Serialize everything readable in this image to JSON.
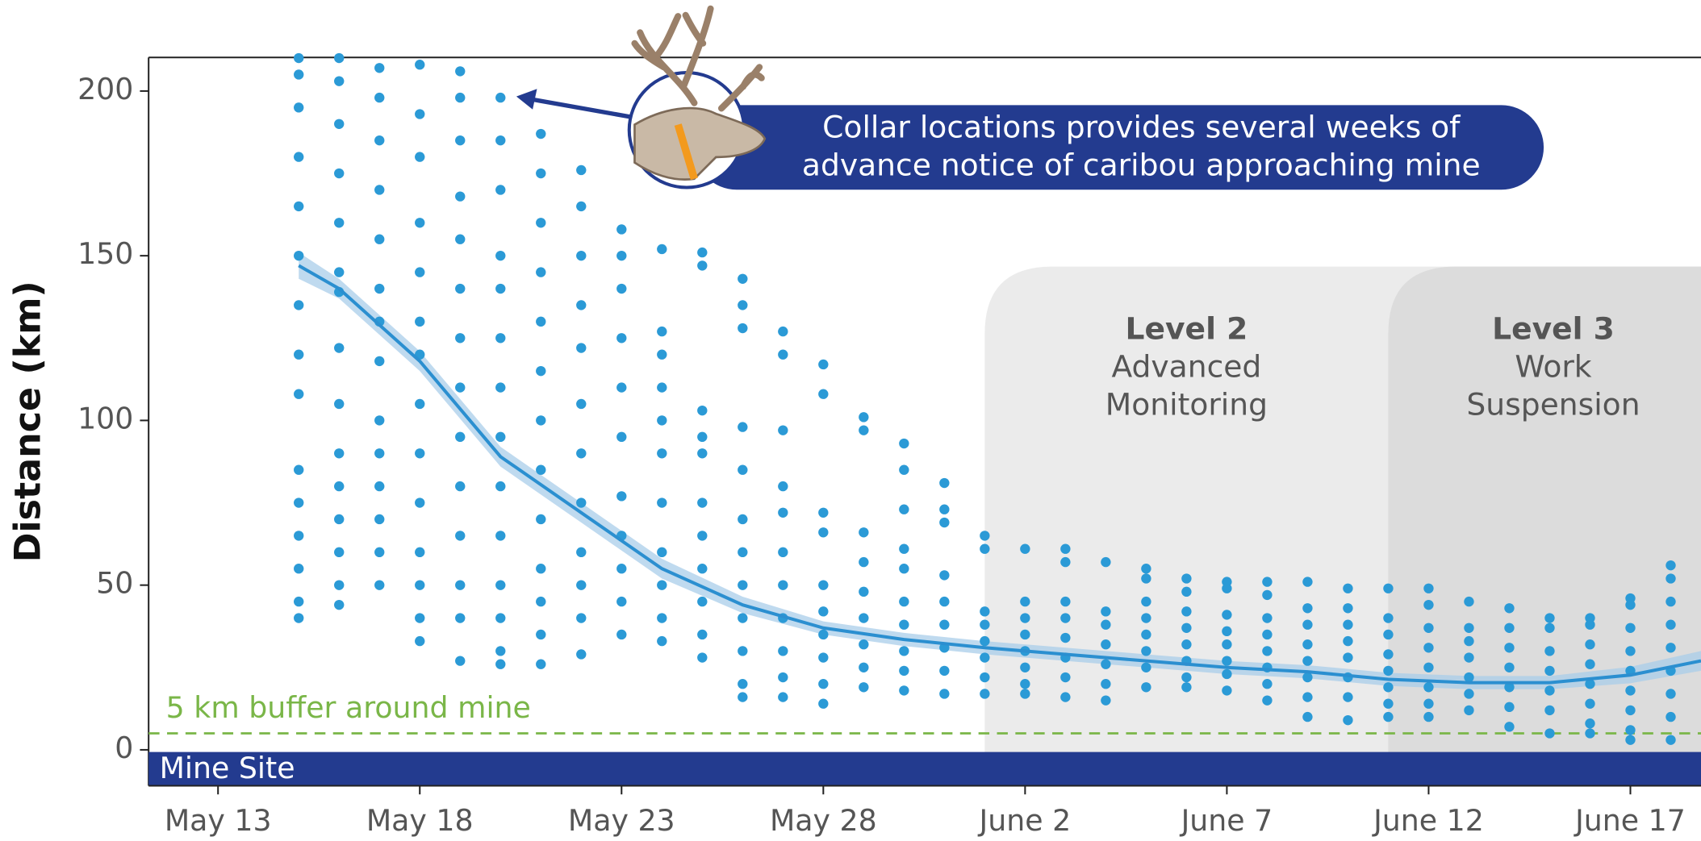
{
  "chart_data": {
    "type": "scatter",
    "y_label": "Distance (km)",
    "color": "#2b9ad6",
    "xlim": [
      -1.72,
      36.75
    ],
    "xticks": [
      {
        "value": 0,
        "label": "May 13"
      },
      {
        "value": 5,
        "label": "May 18"
      },
      {
        "value": 10,
        "label": "May 23"
      },
      {
        "value": 15,
        "label": "May 28"
      },
      {
        "value": 20,
        "label": "June 2"
      },
      {
        "value": 25,
        "label": "June 7"
      },
      {
        "value": 30,
        "label": "June 12"
      },
      {
        "value": 35,
        "label": "June 17"
      }
    ],
    "ylim": [
      -10.9,
      210.2
    ],
    "yticks": [
      0,
      50,
      100,
      150,
      200
    ],
    "x": [
      2,
      3,
      4,
      5,
      6,
      7,
      8,
      9,
      10,
      11,
      12,
      13,
      14,
      15,
      16,
      17,
      18,
      19,
      20,
      21,
      22,
      23,
      24,
      25,
      26,
      27,
      28,
      29,
      30,
      31,
      32,
      33,
      34,
      35,
      36
    ],
    "values": [
      [
        210,
        205,
        195,
        180,
        165,
        150,
        135,
        120,
        108,
        85,
        75,
        65,
        55,
        45,
        40
      ],
      [
        210,
        203,
        190,
        175,
        160,
        145,
        139,
        122,
        105,
        90,
        80,
        70,
        60,
        50,
        44
      ],
      [
        207,
        198,
        185,
        170,
        155,
        140,
        130,
        118,
        100,
        90,
        80,
        70,
        60,
        50
      ],
      [
        208,
        193,
        180,
        160,
        145,
        130,
        120,
        105,
        90,
        75,
        60,
        50,
        40,
        33
      ],
      [
        206,
        198,
        185,
        168,
        155,
        140,
        125,
        110,
        95,
        80,
        65,
        50,
        40,
        27
      ],
      [
        198,
        185,
        170,
        150,
        140,
        125,
        110,
        95,
        80,
        65,
        50,
        40,
        30,
        26
      ],
      [
        187,
        175,
        160,
        145,
        130,
        115,
        100,
        85,
        70,
        55,
        45,
        35,
        26
      ],
      [
        176,
        165,
        150,
        135,
        122,
        105,
        90,
        75,
        60,
        50,
        40,
        29
      ],
      [
        158,
        150,
        140,
        125,
        110,
        95,
        77,
        65,
        55,
        45,
        35
      ],
      [
        152,
        127,
        120,
        110,
        100,
        90,
        75,
        60,
        50,
        40,
        33
      ],
      [
        151,
        147,
        103,
        95,
        90,
        75,
        65,
        55,
        45,
        35,
        28
      ],
      [
        143,
        135,
        128,
        98,
        85,
        70,
        60,
        50,
        40,
        30,
        20,
        16
      ],
      [
        127,
        120,
        97,
        80,
        72,
        60,
        50,
        40,
        30,
        22,
        16
      ],
      [
        117,
        108,
        72,
        66,
        50,
        42,
        35,
        28,
        20,
        14
      ],
      [
        101,
        97,
        66,
        57,
        48,
        40,
        32,
        25,
        19
      ],
      [
        93,
        85,
        73,
        61,
        55,
        45,
        38,
        30,
        24,
        18
      ],
      [
        81,
        73,
        69,
        53,
        45,
        38,
        31,
        24,
        17
      ],
      [
        65,
        61,
        42,
        38,
        33,
        28,
        22,
        17
      ],
      [
        61,
        45,
        40,
        35,
        30,
        25,
        20,
        17
      ],
      [
        61,
        57,
        45,
        40,
        34,
        28,
        22,
        16
      ],
      [
        57,
        42,
        38,
        32,
        26,
        20,
        15
      ],
      [
        55,
        52,
        45,
        40,
        35,
        30,
        25,
        19
      ],
      [
        52,
        48,
        42,
        37,
        32,
        27,
        22,
        19
      ],
      [
        51,
        49,
        41,
        36,
        32,
        27,
        23,
        18
      ],
      [
        51,
        47,
        40,
        35,
        30,
        25,
        20,
        15
      ],
      [
        51,
        43,
        38,
        32,
        27,
        22,
        16,
        10
      ],
      [
        49,
        43,
        38,
        33,
        28,
        22,
        16,
        9
      ],
      [
        49,
        40,
        35,
        29,
        24,
        19,
        14,
        10
      ],
      [
        49,
        44,
        37,
        31,
        25,
        19,
        14,
        10
      ],
      [
        45,
        37,
        33,
        28,
        22,
        17,
        12
      ],
      [
        43,
        37,
        31,
        25,
        19,
        13,
        7
      ],
      [
        40,
        37,
        30,
        24,
        18,
        12,
        5
      ],
      [
        40,
        38,
        32,
        26,
        20,
        14,
        8,
        5
      ],
      [
        46,
        44,
        37,
        30,
        24,
        18,
        12,
        6,
        3
      ],
      [
        56,
        52,
        45,
        38,
        31,
        24,
        17,
        10,
        3
      ]
    ],
    "trend": {
      "x": [
        2,
        3,
        5,
        7,
        9,
        11,
        13,
        15,
        17,
        19,
        21,
        23,
        25,
        27,
        29,
        31,
        33,
        35,
        36.75
      ],
      "values": [
        147,
        140,
        118,
        89,
        72,
        55,
        44,
        37,
        33.5,
        31,
        29,
        27,
        25,
        23.7,
        21.4,
        20.4,
        20.4,
        22.7,
        27
      ],
      "lower": [
        143,
        137,
        115,
        86,
        69,
        52,
        41.5,
        35,
        31.5,
        29,
        27,
        25,
        23,
        21.7,
        19.4,
        18.4,
        18.4,
        20.2,
        24
      ],
      "upper": [
        151,
        143,
        121,
        92,
        75,
        58,
        46.5,
        39,
        35.5,
        33,
        31,
        29,
        27,
        25.7,
        23.4,
        22.4,
        22.4,
        25.2,
        30
      ],
      "color": "#2b8fd0",
      "band_color": "#a9cdea"
    },
    "regions": [
      {
        "start": 19,
        "title": "Level 2",
        "lines": [
          "Advanced",
          "Monitoring"
        ],
        "color": "#ebebeb"
      },
      {
        "start": 29,
        "title": "Level 3",
        "lines": [
          "Work",
          "Suspension"
        ],
        "color": "#dcdcdc"
      }
    ],
    "buffer": {
      "value": 5,
      "label": "5 km buffer around mine",
      "color": "#7ab648"
    },
    "mine_site": {
      "label": "Mine Site",
      "color": "#233b8f"
    },
    "annotation": {
      "lines": [
        "Collar locations provides several weeks of",
        "advance notice of caribou approaching mine"
      ],
      "color": "#233b8f"
    }
  }
}
